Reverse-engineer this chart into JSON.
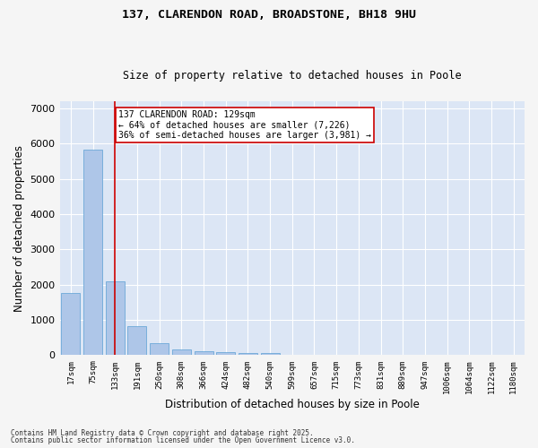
{
  "title1": "137, CLARENDON ROAD, BROADSTONE, BH18 9HU",
  "title2": "Size of property relative to detached houses in Poole",
  "xlabel": "Distribution of detached houses by size in Poole",
  "ylabel": "Number of detached properties",
  "categories": [
    "17sqm",
    "75sqm",
    "133sqm",
    "191sqm",
    "250sqm",
    "308sqm",
    "366sqm",
    "424sqm",
    "482sqm",
    "540sqm",
    "599sqm",
    "657sqm",
    "715sqm",
    "773sqm",
    "831sqm",
    "889sqm",
    "947sqm",
    "1006sqm",
    "1064sqm",
    "1122sqm",
    "1180sqm"
  ],
  "values": [
    1760,
    5830,
    2090,
    820,
    340,
    175,
    110,
    90,
    75,
    50,
    20,
    10,
    0,
    0,
    0,
    0,
    0,
    0,
    0,
    0,
    0
  ],
  "bar_color": "#aec6e8",
  "bar_edge_color": "#5a9fd4",
  "vline_x_index": 2,
  "vline_color": "#cc0000",
  "annotation_text": "137 CLARENDON ROAD: 129sqm\n← 64% of detached houses are smaller (7,226)\n36% of semi-detached houses are larger (3,981) →",
  "annotation_box_color": "#ffffff",
  "annotation_box_edge": "#cc0000",
  "ylim": [
    0,
    7200
  ],
  "yticks": [
    0,
    1000,
    2000,
    3000,
    4000,
    5000,
    6000,
    7000
  ],
  "fig_bg_color": "#f5f5f5",
  "plot_bg_color": "#dce6f5",
  "grid_color": "#ffffff",
  "footer1": "Contains HM Land Registry data © Crown copyright and database right 2025.",
  "footer2": "Contains public sector information licensed under the Open Government Licence v3.0."
}
